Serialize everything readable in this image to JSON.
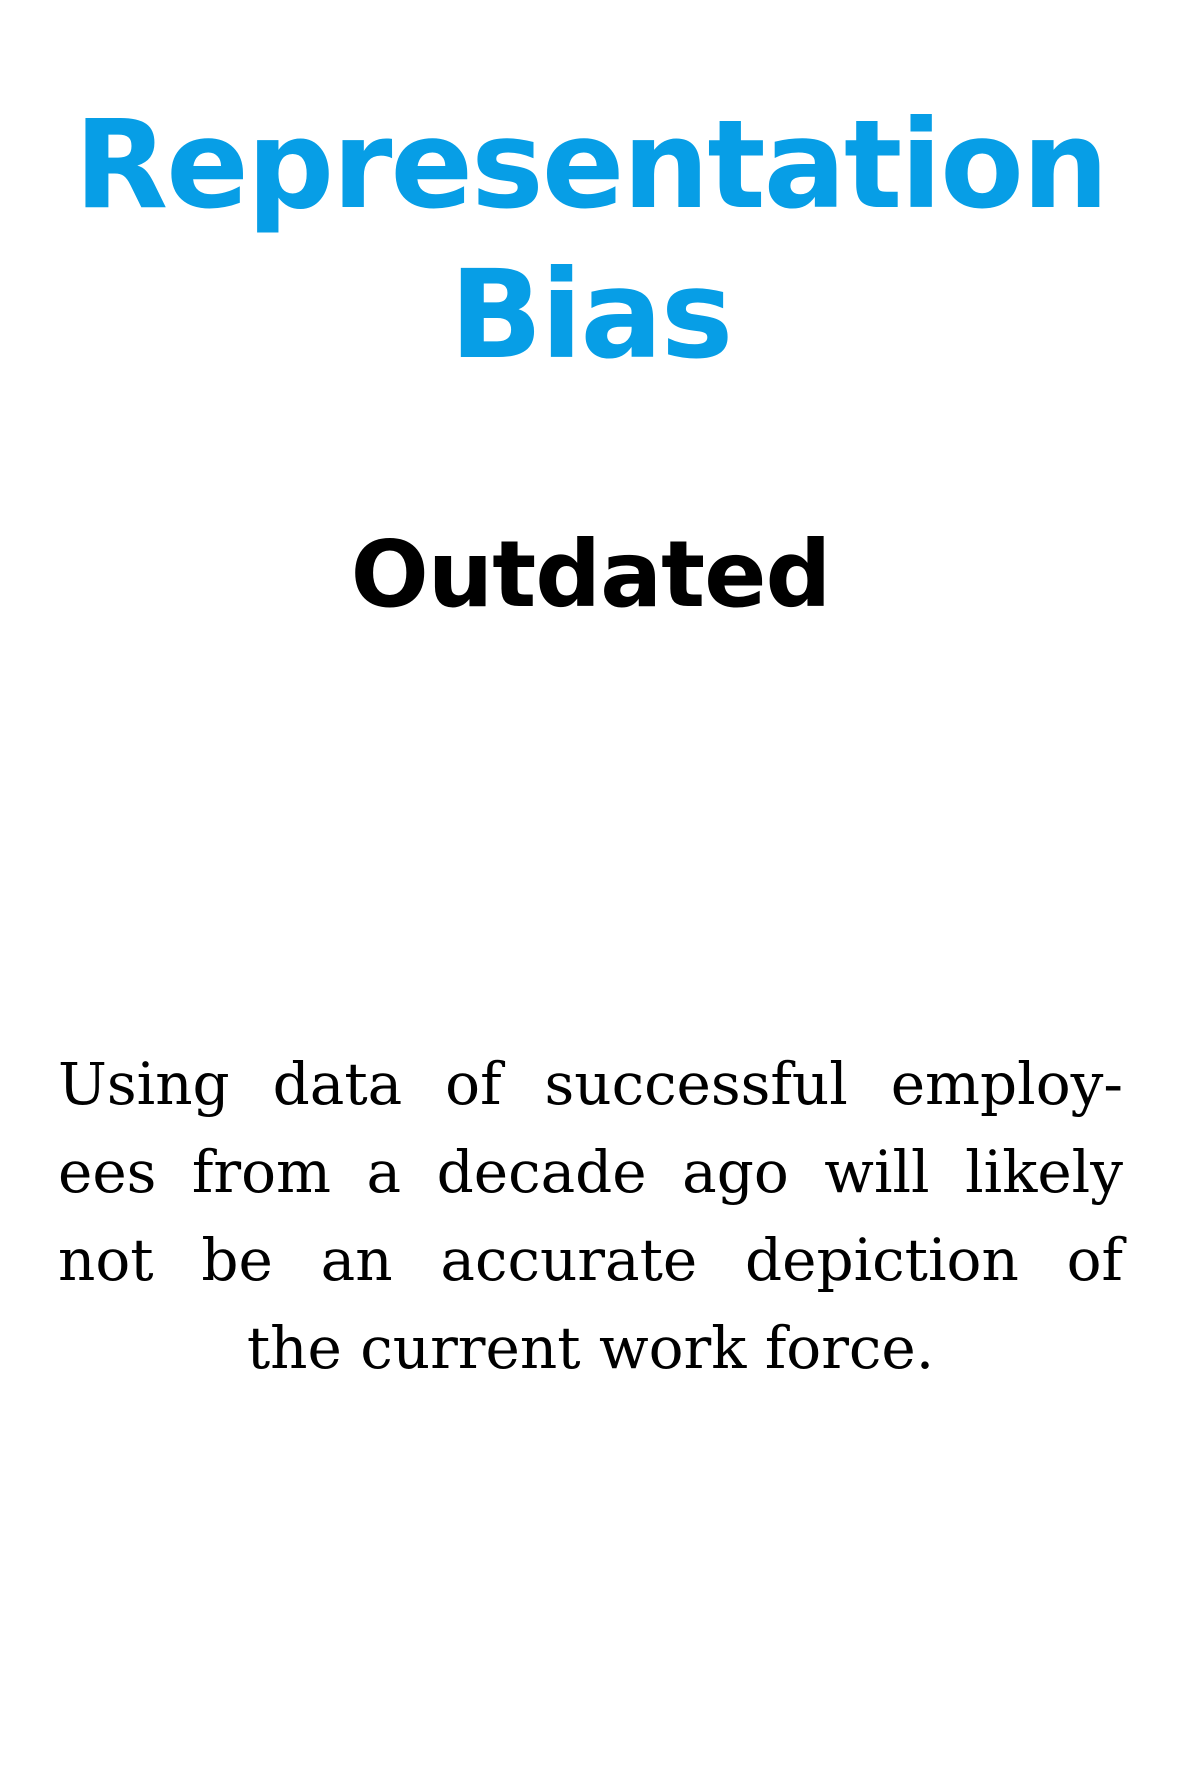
{
  "title": {
    "lines": [
      "Representation",
      "Bias"
    ],
    "color": "#079ee6"
  },
  "subtitle": "Outdated",
  "body": {
    "lines": [
      "Using data of successful employ-",
      "ees from a decade ago will likely",
      "not be an accurate depiction of",
      "the current work force."
    ]
  }
}
